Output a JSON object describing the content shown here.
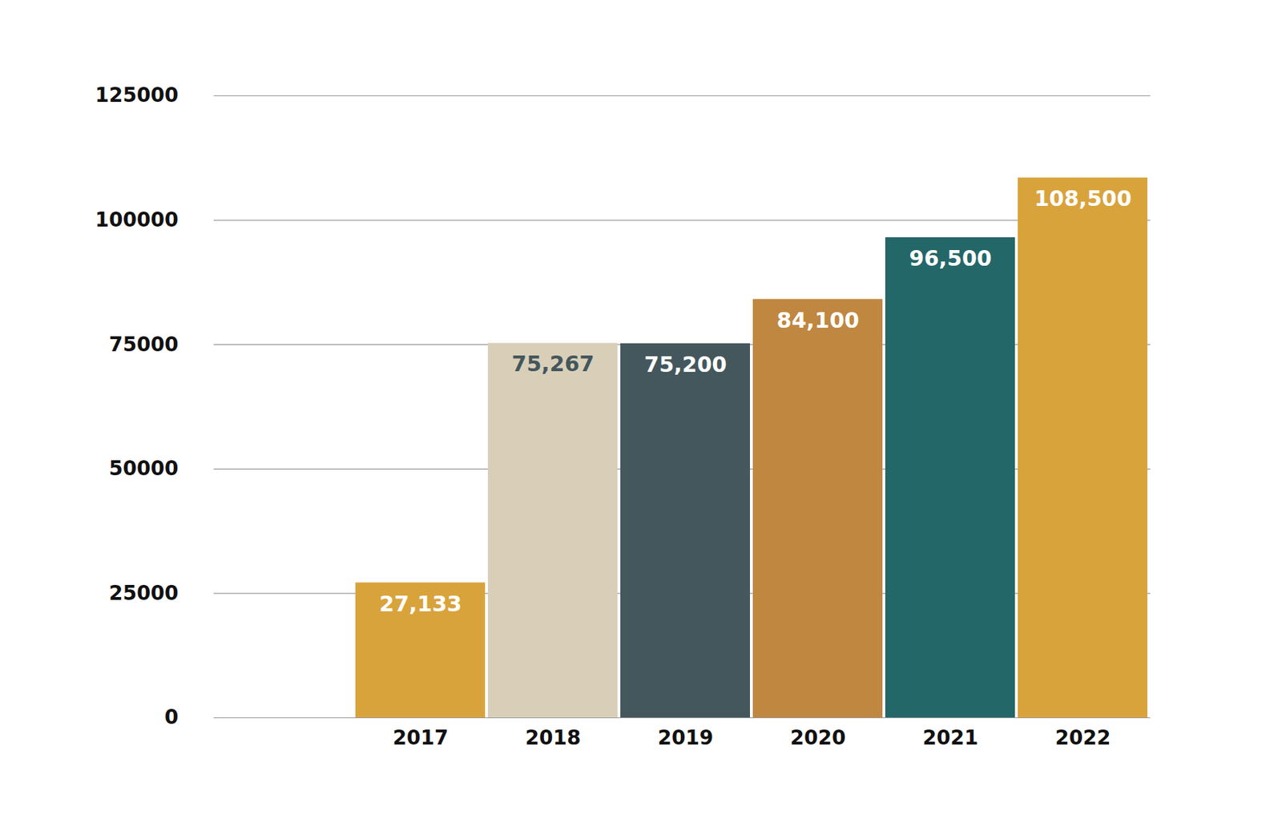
{
  "chart_data": {
    "type": "bar",
    "categories": [
      "2017",
      "2018",
      "2019",
      "2020",
      "2021",
      "2022"
    ],
    "values": [
      27133,
      75267,
      75200,
      84100,
      96500,
      108500
    ],
    "value_labels": [
      "27,133",
      "75,267",
      "75,200",
      "84,100",
      "96,500",
      "108,500"
    ],
    "colors": [
      "#d9a33c",
      "#d9cfb9",
      "#44575c",
      "#c08740",
      "#246768",
      "#d9a33c"
    ],
    "ylim": [
      0,
      125000
    ],
    "yticks": [
      0,
      25000,
      50000,
      75000,
      100000,
      125000
    ],
    "grid": true,
    "data_labels": true
  }
}
